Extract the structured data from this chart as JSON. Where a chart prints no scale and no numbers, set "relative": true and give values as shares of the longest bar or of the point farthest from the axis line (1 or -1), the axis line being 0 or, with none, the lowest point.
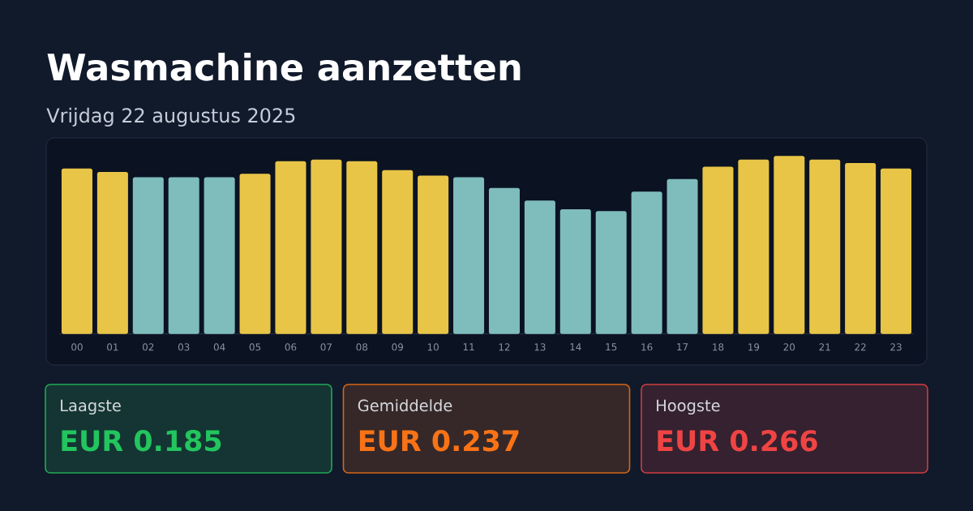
{
  "chart_data": [
    {
      "type": "bar",
      "title": "Wasmachine aanzetten",
      "subtitle": "Vrijdag 22 augustus 2025",
      "categories": [
        "00",
        "01",
        "02",
        "03",
        "04",
        "05",
        "06",
        "07",
        "08",
        "09",
        "10",
        "11",
        "12",
        "13",
        "14",
        "15",
        "16",
        "17",
        "18",
        "19",
        "20",
        "21",
        "22",
        "23"
      ],
      "values": [
        0.93,
        0.91,
        0.88,
        0.88,
        0.88,
        0.9,
        0.97,
        0.98,
        0.97,
        0.92,
        0.89,
        0.88,
        0.82,
        0.75,
        0.7,
        0.69,
        0.8,
        0.87,
        0.94,
        0.98,
        1,
        0.98,
        0.96,
        0.93
      ],
      "colors": [
        "#e8c547",
        "#e8c547",
        "#7fbcbc",
        "#7fbcbc",
        "#7fbcbc",
        "#e8c547",
        "#e8c547",
        "#e8c547",
        "#e8c547",
        "#e8c547",
        "#e8c547",
        "#7fbcbc",
        "#7fbcbc",
        "#7fbcbc",
        "#7fbcbc",
        "#7fbcbc",
        "#7fbcbc",
        "#7fbcbc",
        "#e8c547",
        "#e8c547",
        "#e8c547",
        "#e8c547",
        "#e8c547",
        "#e8c547"
      ],
      "relative": true
    },
    {
      "type": "other",
      "title": "Laagste",
      "annotations": [
        "EUR 0.185"
      ],
      "color": "#22c55e"
    },
    {
      "type": "other",
      "title": "Gemiddelde",
      "annotations": [
        "EUR 0.237"
      ],
      "color": "#f97316"
    },
    {
      "type": "other",
      "title": "Hoogste",
      "annotations": [
        "EUR 0.266"
      ],
      "color": "#ef4444"
    }
  ]
}
